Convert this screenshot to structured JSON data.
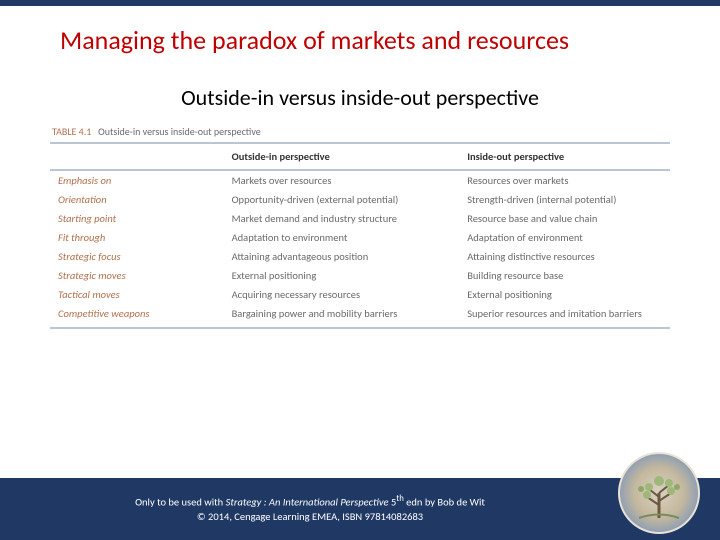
{
  "title": "Managing the paradox of markets and resources",
  "subtitle": "Outside-in versus inside-out perspective",
  "table": {
    "caption_num": "TABLE 4.1",
    "caption_text": "Outside-in versus inside-out perspective",
    "columns": [
      "",
      "Outside-in perspective",
      "Inside-out perspective"
    ],
    "rows": [
      {
        "label": "Emphasis on",
        "c1": "Markets over resources",
        "c2": "Resources over markets"
      },
      {
        "label": "Orientation",
        "c1": "Opportunity-driven (external potential)",
        "c2": "Strength-driven (internal potential)"
      },
      {
        "label": "Starting point",
        "c1": "Market demand and industry structure",
        "c2": "Resource base and value chain"
      },
      {
        "label": "Fit through",
        "c1": "Adaptation to environment",
        "c2": "Adaptation of environment"
      },
      {
        "label": "Strategic focus",
        "c1": "Attaining advantageous position",
        "c2": "Attaining distinctive resources"
      },
      {
        "label": "Strategic moves",
        "c1": "External positioning",
        "c2": "Building resource base"
      },
      {
        "label": "Tactical moves",
        "c1": "Acquiring necessary resources",
        "c2": "External positioning"
      },
      {
        "label": "Competitive weapons",
        "c1": "Bargaining power and mobility barriers",
        "c2": "Superior resources and imitation barriers"
      }
    ]
  },
  "footer": {
    "line1_a": "Only to be used with ",
    "line1_book": "Strategy : An International Perspective",
    "line1_b": " 5",
    "line1_sup": "th",
    "line1_c": " edn by Bob de Wit",
    "line2": "© 2014, Cengage Learning EMEA, ISBN 97814082683"
  },
  "colors": {
    "title": "#c00000",
    "bar": "#1f3864",
    "row_label": "#b0704c",
    "cell_text": "#6b6b6b",
    "rule": "#b9c6d6"
  }
}
